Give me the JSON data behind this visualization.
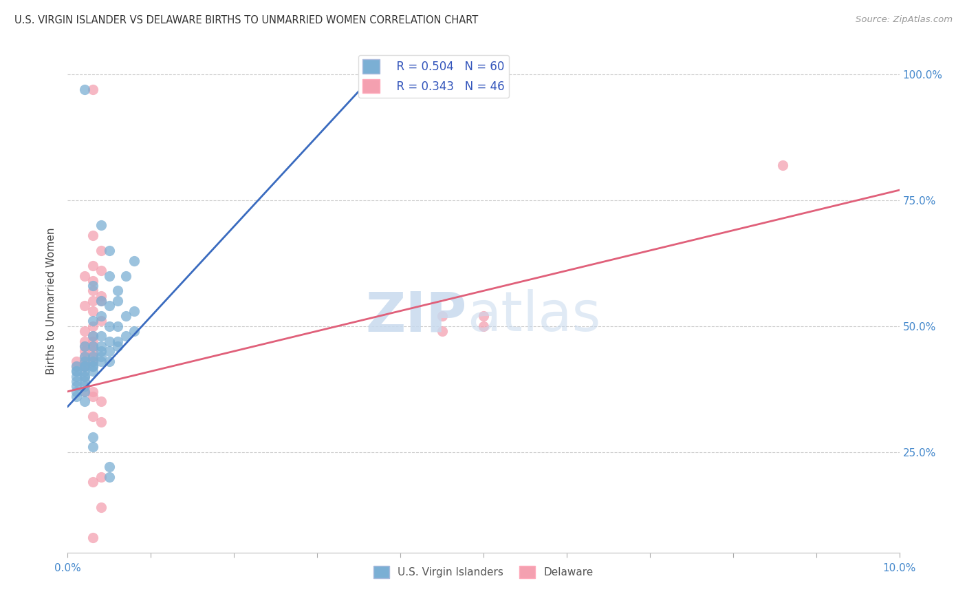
{
  "title": "U.S. VIRGIN ISLANDER VS DELAWARE BIRTHS TO UNMARRIED WOMEN CORRELATION CHART",
  "source": "Source: ZipAtlas.com",
  "ylabel": "Births to Unmarried Women",
  "legend_blue_label": "U.S. Virgin Islanders",
  "legend_pink_label": "Delaware",
  "blue_R": "R = 0.504",
  "blue_N": "N = 60",
  "pink_R": "R = 0.343",
  "pink_N": "N = 46",
  "blue_color": "#7BAFD4",
  "pink_color": "#F4A0B0",
  "blue_line_color": "#3A6BBF",
  "pink_line_color": "#E0607A",
  "blue_scatter": [
    [
      0.002,
      0.97
    ],
    [
      0.004,
      0.7
    ],
    [
      0.005,
      0.65
    ],
    [
      0.008,
      0.63
    ],
    [
      0.005,
      0.6
    ],
    [
      0.007,
      0.6
    ],
    [
      0.003,
      0.58
    ],
    [
      0.006,
      0.57
    ],
    [
      0.004,
      0.55
    ],
    [
      0.006,
      0.55
    ],
    [
      0.005,
      0.54
    ],
    [
      0.008,
      0.53
    ],
    [
      0.004,
      0.52
    ],
    [
      0.007,
      0.52
    ],
    [
      0.003,
      0.51
    ],
    [
      0.006,
      0.5
    ],
    [
      0.005,
      0.5
    ],
    [
      0.008,
      0.49
    ],
    [
      0.004,
      0.48
    ],
    [
      0.007,
      0.48
    ],
    [
      0.003,
      0.48
    ],
    [
      0.006,
      0.47
    ],
    [
      0.005,
      0.47
    ],
    [
      0.004,
      0.46
    ],
    [
      0.003,
      0.46
    ],
    [
      0.006,
      0.46
    ],
    [
      0.002,
      0.46
    ],
    [
      0.005,
      0.45
    ],
    [
      0.004,
      0.45
    ],
    [
      0.003,
      0.44
    ],
    [
      0.002,
      0.44
    ],
    [
      0.004,
      0.44
    ],
    [
      0.005,
      0.43
    ],
    [
      0.003,
      0.43
    ],
    [
      0.002,
      0.43
    ],
    [
      0.004,
      0.43
    ],
    [
      0.003,
      0.42
    ],
    [
      0.002,
      0.42
    ],
    [
      0.001,
      0.42
    ],
    [
      0.003,
      0.42
    ],
    [
      0.002,
      0.42
    ],
    [
      0.001,
      0.41
    ],
    [
      0.002,
      0.41
    ],
    [
      0.003,
      0.41
    ],
    [
      0.001,
      0.41
    ],
    [
      0.002,
      0.4
    ],
    [
      0.001,
      0.4
    ],
    [
      0.002,
      0.4
    ],
    [
      0.001,
      0.39
    ],
    [
      0.002,
      0.39
    ],
    [
      0.001,
      0.38
    ],
    [
      0.002,
      0.38
    ],
    [
      0.001,
      0.37
    ],
    [
      0.002,
      0.37
    ],
    [
      0.001,
      0.36
    ],
    [
      0.002,
      0.35
    ],
    [
      0.003,
      0.28
    ],
    [
      0.003,
      0.26
    ],
    [
      0.005,
      0.22
    ],
    [
      0.005,
      0.2
    ]
  ],
  "pink_scatter": [
    [
      0.003,
      0.97
    ],
    [
      0.086,
      0.82
    ],
    [
      0.003,
      0.68
    ],
    [
      0.004,
      0.65
    ],
    [
      0.003,
      0.62
    ],
    [
      0.004,
      0.61
    ],
    [
      0.002,
      0.6
    ],
    [
      0.003,
      0.59
    ],
    [
      0.003,
      0.57
    ],
    [
      0.004,
      0.56
    ],
    [
      0.003,
      0.55
    ],
    [
      0.004,
      0.55
    ],
    [
      0.002,
      0.54
    ],
    [
      0.003,
      0.53
    ],
    [
      0.05,
      0.52
    ],
    [
      0.045,
      0.52
    ],
    [
      0.004,
      0.51
    ],
    [
      0.003,
      0.5
    ],
    [
      0.05,
      0.5
    ],
    [
      0.045,
      0.49
    ],
    [
      0.002,
      0.49
    ],
    [
      0.003,
      0.48
    ],
    [
      0.002,
      0.47
    ],
    [
      0.003,
      0.47
    ],
    [
      0.002,
      0.46
    ],
    [
      0.003,
      0.46
    ],
    [
      0.002,
      0.45
    ],
    [
      0.003,
      0.45
    ],
    [
      0.002,
      0.44
    ],
    [
      0.003,
      0.44
    ],
    [
      0.002,
      0.43
    ],
    [
      0.003,
      0.43
    ],
    [
      0.001,
      0.43
    ],
    [
      0.002,
      0.42
    ],
    [
      0.001,
      0.42
    ],
    [
      0.002,
      0.42
    ],
    [
      0.002,
      0.37
    ],
    [
      0.003,
      0.37
    ],
    [
      0.003,
      0.36
    ],
    [
      0.004,
      0.35
    ],
    [
      0.003,
      0.32
    ],
    [
      0.004,
      0.31
    ],
    [
      0.004,
      0.2
    ],
    [
      0.003,
      0.19
    ],
    [
      0.004,
      0.14
    ],
    [
      0.003,
      0.08
    ]
  ],
  "xmin": 0.0,
  "xmax": 0.1,
  "ymin": 0.05,
  "ymax": 1.05,
  "blue_trend_x": [
    0.0,
    0.038
  ],
  "blue_trend_y": [
    0.34,
    1.02
  ],
  "pink_trend_x": [
    0.0,
    0.1
  ],
  "pink_trend_y": [
    0.37,
    0.77
  ]
}
